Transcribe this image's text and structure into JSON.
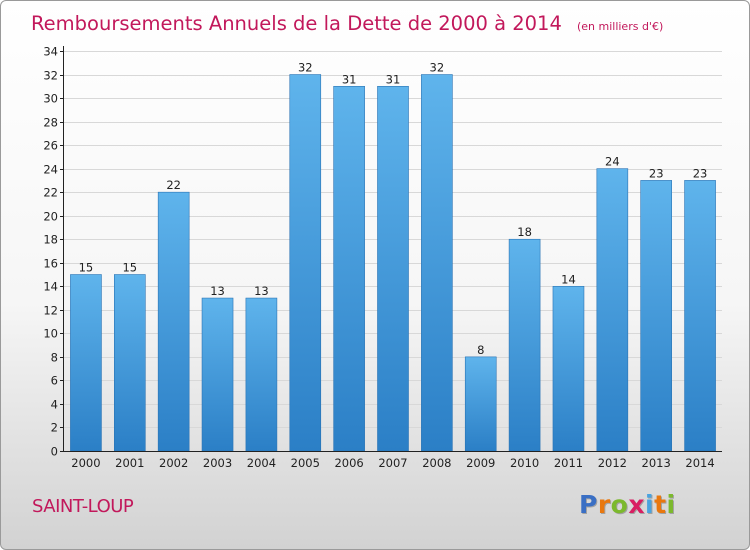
{
  "chart_data": {
    "type": "bar",
    "title": "Remboursements Annuels de la Dette de 2000 à 2014",
    "subtitle": "(en milliers d'€)",
    "categories": [
      "2000",
      "2001",
      "2002",
      "2003",
      "2004",
      "2005",
      "2006",
      "2007",
      "2008",
      "2009",
      "2010",
      "2011",
      "2012",
      "2013",
      "2014"
    ],
    "values": [
      15,
      15,
      22,
      13,
      13,
      32,
      31,
      31,
      32,
      8,
      18,
      14,
      24,
      23,
      23
    ],
    "data_labels": [
      "15",
      "15",
      "22",
      "13",
      "13",
      "32",
      "31",
      "31",
      "32",
      "8",
      "18",
      "14",
      "24",
      "23",
      "23"
    ],
    "y_ticks": [
      "0",
      "2",
      "4",
      "6",
      "8",
      "10",
      "12",
      "14",
      "16",
      "18",
      "20",
      "22",
      "24",
      "26",
      "28",
      "30",
      "32",
      "34"
    ],
    "ylim": [
      0,
      34
    ],
    "xlabel": "",
    "ylabel": "",
    "grid": true,
    "colors": {
      "bar_top": "#5fb4ec",
      "bar_bottom": "#2b7fc6",
      "title": "#c2185b"
    }
  },
  "footer": {
    "commune": "SAINT-LOUP",
    "logo_letters": [
      "P",
      "r",
      "o",
      "x",
      "i",
      "t",
      "i"
    ],
    "logo_colors": [
      "#3a6fc4",
      "#e9780f",
      "#7cb92d",
      "#d91e62",
      "#4aa3df",
      "#e9780f",
      "#7cb92d"
    ]
  }
}
